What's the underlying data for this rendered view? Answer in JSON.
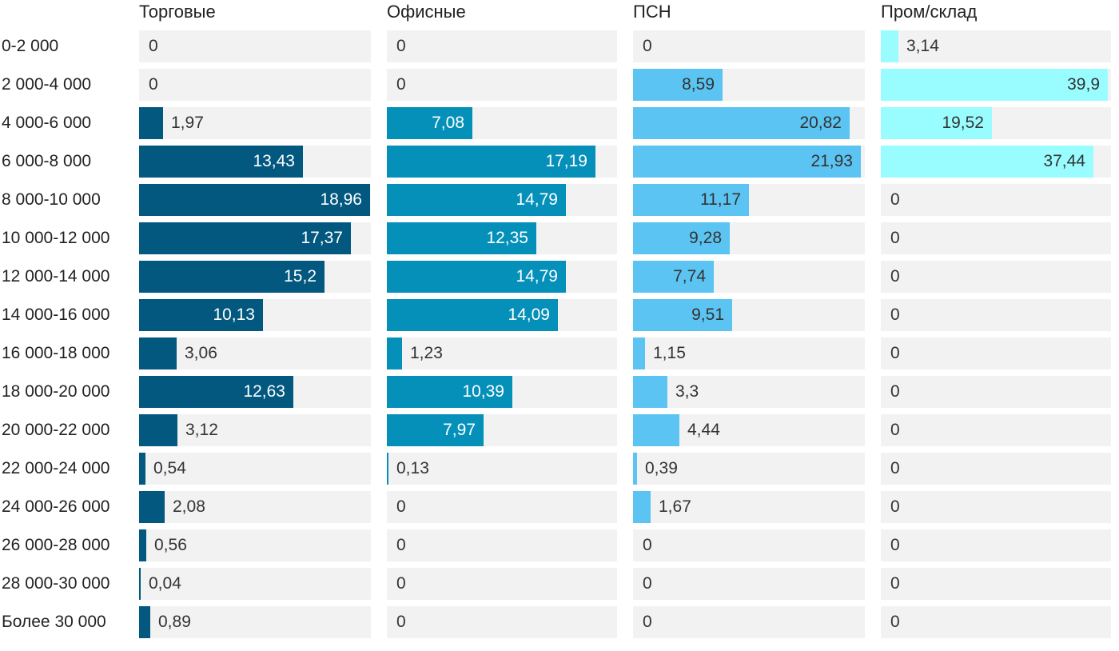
{
  "chart_data": {
    "type": "bar",
    "orientation": "horizontal",
    "layout": "small-multiples",
    "categories": [
      "0-2 000",
      "2 000-4 000",
      "4 000-6 000",
      "6 000-8 000",
      "8 000-10 000",
      "10 000-12 000",
      "12 000-14 000",
      "14 000-16 000",
      "16 000-18 000",
      "18 000-20 000",
      "20 000-22 000",
      "22 000-24 000",
      "24 000-26 000",
      "26 000-28 000",
      "28 000-30 000",
      "Более 30 000"
    ],
    "xlim": [
      0,
      19
    ],
    "series": [
      {
        "name": "Торговые",
        "color": "#02587f",
        "values": [
          0,
          0,
          1.97,
          13.43,
          18.96,
          17.37,
          15.2,
          10.13,
          3.06,
          12.63,
          3.12,
          0.54,
          2.08,
          0.56,
          0.04,
          0.89
        ],
        "labels": [
          "0",
          "0",
          "1,97",
          "13,43",
          "18,96",
          "17,37",
          "15,2",
          "10,13",
          "3,06",
          "12,63",
          "3,12",
          "0,54",
          "2,08",
          "0,56",
          "0,04",
          "0,89"
        ]
      },
      {
        "name": "Офисные",
        "color": "#0590ba",
        "values": [
          0,
          0,
          7.08,
          17.19,
          14.79,
          12.35,
          14.79,
          14.09,
          1.23,
          10.39,
          7.97,
          0.13,
          0,
          0,
          0,
          0
        ],
        "labels": [
          "0",
          "0",
          "7,08",
          "17,19",
          "14,79",
          "12,35",
          "14,79",
          "14,09",
          "1,23",
          "10,39",
          "7,97",
          "0,13",
          "0",
          "0",
          "0",
          "0"
        ]
      },
      {
        "name": "ПСН",
        "color": "#5bc4f2",
        "values": [
          0,
          8.59,
          20.82,
          21.93,
          11.17,
          9.28,
          7.74,
          9.51,
          1.15,
          3.3,
          4.44,
          0.39,
          1.67,
          0,
          0,
          0
        ],
        "labels": [
          "0",
          "8,59",
          "20,82",
          "21,93",
          "11,17",
          "9,28",
          "7,74",
          "9,51",
          "1,15",
          "3,3",
          "4,44",
          "0,39",
          "1,67",
          "0",
          "0",
          "0"
        ],
        "xlim": [
          0,
          22.3
        ]
      },
      {
        "name": "Пром/склад",
        "color": "#99fdff",
        "values": [
          3.14,
          39.9,
          19.52,
          37.44,
          0,
          0,
          0,
          0,
          0,
          0,
          0,
          0,
          0,
          0,
          0,
          0
        ],
        "labels": [
          "3,14",
          "39,9",
          "19,52",
          "37,44",
          "0",
          "0",
          "0",
          "0",
          "0",
          "0",
          "0",
          "0",
          "0",
          "0",
          "0",
          "0"
        ],
        "xlim": [
          0,
          40.5
        ]
      }
    ]
  }
}
